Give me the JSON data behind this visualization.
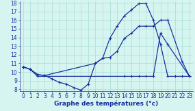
{
  "xlabel": "Graphe des températures (°c)",
  "xlim": [
    -0.5,
    23.5
  ],
  "ylim": [
    7.8,
    18.2
  ],
  "yticks": [
    8,
    9,
    10,
    11,
    12,
    13,
    14,
    15,
    16,
    17,
    18
  ],
  "xticks": [
    0,
    1,
    2,
    3,
    4,
    5,
    6,
    7,
    8,
    9,
    10,
    11,
    12,
    13,
    14,
    15,
    16,
    17,
    18,
    19,
    20,
    21,
    22,
    23
  ],
  "background_color": "#d6f5f0",
  "grid_color": "#aee0da",
  "line_color": "#1a2e9e",
  "line1_x": [
    0,
    1,
    2,
    3,
    4,
    5,
    6,
    7,
    8,
    9,
    10,
    11,
    12,
    13,
    14,
    15,
    16,
    17,
    18,
    19,
    20,
    21,
    22,
    23
  ],
  "line1_y": [
    10.6,
    10.3,
    9.7,
    9.6,
    9.2,
    8.8,
    8.6,
    8.2,
    7.9,
    8.6,
    11.0,
    11.6,
    13.9,
    15.3,
    16.5,
    17.2,
    17.9,
    17.9,
    16.0,
    13.2,
    9.5,
    9.5,
    9.5,
    9.5
  ],
  "line2_x": [
    0,
    1,
    2,
    14,
    15,
    16,
    17,
    18,
    19,
    20,
    23
  ],
  "line2_y": [
    10.6,
    10.3,
    9.5,
    9.5,
    9.5,
    9.5,
    9.5,
    9.5,
    14.5,
    13.2,
    9.5
  ],
  "line3_x": [
    0,
    1,
    2,
    3,
    10,
    11,
    12,
    13,
    14,
    15,
    16,
    17,
    18,
    19,
    20,
    22,
    23
  ],
  "line3_y": [
    10.6,
    10.3,
    9.7,
    9.6,
    11.0,
    11.6,
    11.7,
    12.4,
    13.9,
    14.5,
    15.3,
    15.3,
    15.3,
    16.0,
    16.0,
    11.2,
    9.5
  ],
  "tick_fontsize": 5.5,
  "label_fontsize": 6.5
}
